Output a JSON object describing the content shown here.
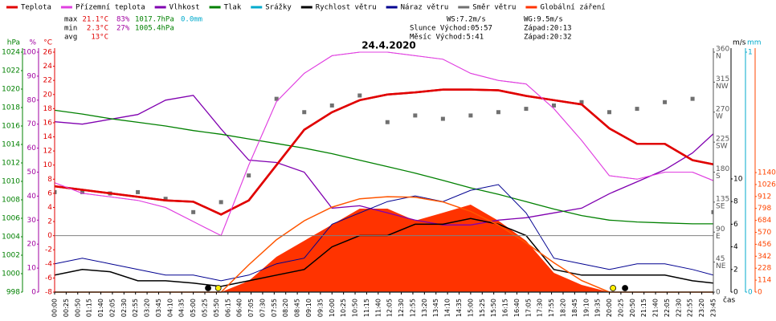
{
  "chart_data": {
    "type": "line",
    "title": "24.4.2020",
    "x_label": "čas",
    "x": [
      0,
      60,
      120,
      180,
      240,
      300,
      360,
      420,
      480,
      540,
      600,
      660,
      720,
      780,
      840,
      900,
      960,
      1020,
      1080,
      1140,
      1200,
      1260,
      1320,
      1380,
      1425
    ],
    "xlim": [
      0,
      1425
    ],
    "xticks": [
      {
        "value": 0,
        "label": "00:00"
      },
      {
        "value": 25,
        "label": "00:25"
      },
      {
        "value": 50,
        "label": "00:50"
      },
      {
        "value": 75,
        "label": "01:15"
      },
      {
        "value": 100,
        "label": "01:40"
      },
      {
        "value": 125,
        "label": "02:05"
      },
      {
        "value": 150,
        "label": "02:30"
      },
      {
        "value": 175,
        "label": "02:55"
      },
      {
        "value": 200,
        "label": "03:20"
      },
      {
        "value": 225,
        "label": "03:45"
      },
      {
        "value": 250,
        "label": "04:10"
      },
      {
        "value": 275,
        "label": "04:35"
      },
      {
        "value": 300,
        "label": "05:00"
      },
      {
        "value": 325,
        "label": "05:25"
      },
      {
        "value": 350,
        "label": "05:50"
      },
      {
        "value": 375,
        "label": "06:15"
      },
      {
        "value": 400,
        "label": "06:40"
      },
      {
        "value": 425,
        "label": "07:05"
      },
      {
        "value": 450,
        "label": "07:30"
      },
      {
        "value": 475,
        "label": "07:55"
      },
      {
        "value": 500,
        "label": "08:20"
      },
      {
        "value": 525,
        "label": "08:45"
      },
      {
        "value": 550,
        "label": "09:10"
      },
      {
        "value": 575,
        "label": "09:35"
      },
      {
        "value": 600,
        "label": "10:00"
      },
      {
        "value": 625,
        "label": "10:25"
      },
      {
        "value": 650,
        "label": "10:50"
      },
      {
        "value": 675,
        "label": "11:15"
      },
      {
        "value": 700,
        "label": "11:40"
      },
      {
        "value": 725,
        "label": "12:05"
      },
      {
        "value": 750,
        "label": "12:30"
      },
      {
        "value": 775,
        "label": "12:55"
      },
      {
        "value": 800,
        "label": "13:20"
      },
      {
        "value": 825,
        "label": "13:45"
      },
      {
        "value": 850,
        "label": "14:10"
      },
      {
        "value": 875,
        "label": "14:35"
      },
      {
        "value": 900,
        "label": "15:00"
      },
      {
        "value": 925,
        "label": "15:25"
      },
      {
        "value": 950,
        "label": "15:50"
      },
      {
        "value": 975,
        "label": "16:15"
      },
      {
        "value": 1000,
        "label": "16:40"
      },
      {
        "value": 1025,
        "label": "17:05"
      },
      {
        "value": 1050,
        "label": "17:30"
      },
      {
        "value": 1075,
        "label": "17:55"
      },
      {
        "value": 1100,
        "label": "18:20"
      },
      {
        "value": 1125,
        "label": "18:45"
      },
      {
        "value": 1150,
        "label": "19:10"
      },
      {
        "value": 1175,
        "label": "19:35"
      },
      {
        "value": 1200,
        "label": "20:00"
      },
      {
        "value": 1225,
        "label": "20:25"
      },
      {
        "value": 1250,
        "label": "20:50"
      },
      {
        "value": 1275,
        "label": "21:15"
      },
      {
        "value": 1300,
        "label": "21:40"
      },
      {
        "value": 1325,
        "label": "22:05"
      },
      {
        "value": 1350,
        "label": "22:30"
      },
      {
        "value": 1375,
        "label": "22:55"
      },
      {
        "value": 1400,
        "label": "23:20"
      },
      {
        "value": 1425,
        "label": "23:45"
      }
    ],
    "axes": {
      "hpa": {
        "header": "hPa",
        "color": "#008000",
        "side": "left",
        "ylim": [
          998,
          1024
        ],
        "yticks": [
          998,
          1000,
          1002,
          1004,
          1006,
          1008,
          1010,
          1012,
          1014,
          1016,
          1018,
          1020,
          1022,
          1024
        ]
      },
      "pct": {
        "header": "%",
        "color": "#a000a0",
        "side": "left",
        "ylim": [
          0,
          100
        ],
        "yticks": [
          0,
          10,
          20,
          30,
          40,
          50,
          60,
          70,
          80,
          90,
          100
        ]
      },
      "temp": {
        "header": "°C",
        "color": "#e00000",
        "side": "left",
        "ylim": [
          -8,
          26
        ],
        "yticks": [
          -8,
          -6,
          -4,
          -2,
          0,
          2,
          4,
          6,
          8,
          10,
          12,
          14,
          16,
          18,
          20,
          22,
          24,
          26
        ],
        "zero_line": 0
      },
      "dir": {
        "color": "#555555",
        "side": "right",
        "ylim": [
          0,
          360
        ],
        "yticks": [
          0,
          45,
          90,
          135,
          180,
          225,
          270,
          315,
          360
        ],
        "tick_names": [
          null,
          "NE",
          "E",
          "SE",
          "S",
          "SW",
          "W",
          "NW",
          "N"
        ]
      },
      "wind": {
        "header": "m/s",
        "color": "#000000",
        "side": "right",
        "ylim": [
          0,
          21.2
        ],
        "yticks": [
          0,
          2,
          4,
          6,
          8,
          10
        ]
      },
      "rain": {
        "header": "mm",
        "color": "#00aacc",
        "side": "right",
        "ylim": [
          0,
          1
        ],
        "yticks": [
          0,
          1
        ]
      },
      "rad": {
        "color": "#ff4400",
        "side": "right",
        "ylim": [
          0,
          2288
        ],
        "yticks": [
          0,
          114,
          228,
          342,
          456,
          570,
          684,
          798,
          912,
          1026,
          1140
        ]
      }
    },
    "series": [
      {
        "name": "Teplota",
        "color": "#e00000",
        "axis": "temp",
        "style": "line",
        "width": 2.5,
        "values": [
          7,
          6.5,
          6,
          5.5,
          5,
          4.8,
          3,
          5,
          10,
          15,
          17.5,
          19.2,
          20,
          20.3,
          20.7,
          20.7,
          20.6,
          19.8,
          19.2,
          18.6,
          15.2,
          13,
          13,
          10.7,
          10.1
        ]
      },
      {
        "name": "Přízemní teplota",
        "color": "#e040e0",
        "axis": "temp",
        "style": "line",
        "width": 1,
        "values": [
          7.5,
          6,
          5.5,
          5,
          4,
          2,
          0,
          10,
          19,
          23,
          25.5,
          26,
          26,
          25.5,
          25,
          23,
          22,
          21.5,
          18,
          13.5,
          8.5,
          8,
          9,
          9,
          7.8
        ]
      },
      {
        "name": "Vlhkost",
        "color": "#8000b0",
        "axis": "pct",
        "style": "line",
        "width": 1.3,
        "values": [
          71,
          70,
          72,
          74,
          80,
          82,
          68,
          55,
          54,
          50,
          35,
          36,
          33,
          30,
          28,
          28,
          30,
          31,
          33,
          35,
          41,
          46,
          51,
          58,
          66
        ]
      },
      {
        "name": "Tlak",
        "color": "#008000",
        "axis": "hpa",
        "style": "line",
        "width": 1.3,
        "values": [
          1017.7,
          1017.3,
          1016.8,
          1016.4,
          1016.0,
          1015.5,
          1015.1,
          1014.6,
          1014.1,
          1013.6,
          1013.0,
          1012.3,
          1011.6,
          1010.9,
          1010.1,
          1009.3,
          1008.6,
          1007.8,
          1007.0,
          1006.3,
          1005.8,
          1005.6,
          1005.5,
          1005.4,
          1005.4
        ]
      },
      {
        "name": "Srážky",
        "color": "#00aacc",
        "axis": "rain",
        "style": "line",
        "width": 1.3,
        "values": [
          0,
          0,
          0,
          0,
          0,
          0,
          0,
          0,
          0,
          0,
          0,
          0,
          0,
          0,
          0,
          0,
          0,
          0,
          0,
          0,
          0,
          0,
          0,
          0,
          0
        ]
      },
      {
        "name": "Rychlost větru",
        "color": "#000000",
        "axis": "wind",
        "style": "line",
        "width": 1.5,
        "values": [
          1.5,
          2,
          1.8,
          1,
          1,
          0.8,
          0.5,
          1,
          1.5,
          2,
          4,
          5,
          5,
          6,
          6,
          6.5,
          6,
          5,
          2,
          1.5,
          1.5,
          1.5,
          1.5,
          1,
          0.8
        ]
      },
      {
        "name": "Náraz větru",
        "color": "#000090",
        "axis": "wind",
        "style": "line",
        "width": 1,
        "values": [
          2.5,
          3,
          2.5,
          2,
          1.5,
          1.5,
          1,
          1.5,
          2.5,
          3,
          6,
          7,
          8,
          8.5,
          8,
          9,
          9.5,
          7,
          3,
          2.5,
          2,
          2.5,
          2.5,
          2,
          1.5
        ]
      },
      {
        "name": "Směr větru",
        "color": "#707070",
        "axis": "dir",
        "style": "scatter",
        "width": 1,
        "values": [
          150,
          150,
          148,
          150,
          140,
          120,
          135,
          175,
          290,
          270,
          280,
          295,
          255,
          265,
          260,
          265,
          270,
          275,
          280,
          285,
          270,
          275,
          285,
          290,
          120
        ]
      },
      {
        "name": "Globální záření",
        "color": "#ff3300",
        "axis": "rad",
        "style": "area",
        "width": 1,
        "values": [
          0,
          0,
          0,
          0,
          0,
          0,
          0,
          107,
          337,
          490,
          643,
          796,
          796,
          681,
          757,
          834,
          681,
          490,
          184,
          69,
          0,
          0,
          0,
          0,
          0
        ]
      }
    ],
    "radiation_max": {
      "color": "#ff5500",
      "axis": "rad",
      "values": [
        0,
        0,
        0,
        0,
        0,
        0,
        0,
        260,
        500,
        680,
        810,
        890,
        910,
        905,
        860,
        770,
        640,
        470,
        280,
        110,
        0,
        0,
        0,
        0,
        0
      ]
    },
    "markers": [
      {
        "x": 332,
        "color": "#000000"
      },
      {
        "x": 354,
        "color": "#ffee00"
      },
      {
        "x": 1208,
        "color": "#ffee00"
      },
      {
        "x": 1234,
        "color": "#000000"
      }
    ],
    "stats": [
      {
        "label": "max",
        "temp": "21.1°C",
        "hum": "83%",
        "pres": "1017.7hPa",
        "rain": "0.0mm"
      },
      {
        "label": "min",
        "temp": "2.3°C",
        "hum": "27%",
        "pres": "1005.4hPa"
      },
      {
        "label": "avg",
        "temp": "13°C"
      }
    ],
    "info": [
      "WS:7.2m/s",
      "WG:9.5m/s",
      "Slunce Východ:05:57",
      "Západ:20:13",
      "Měsíc  Východ:5:41",
      "Západ:20:32"
    ]
  }
}
